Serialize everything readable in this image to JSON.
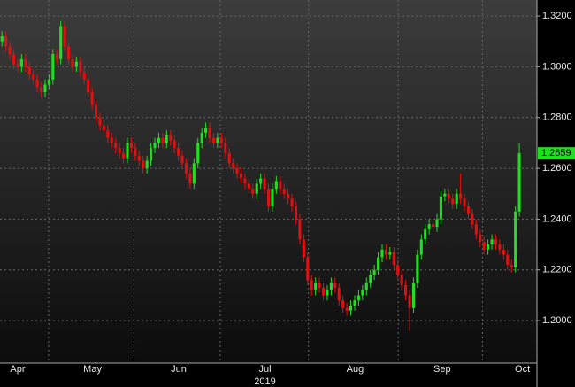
{
  "chart_data": {
    "type": "candlestick",
    "up_color": "#1ee01e",
    "down_color": "#e01010",
    "ylim": [
      1.1833,
      1.3263
    ],
    "yticks": [
      {
        "value": 1.2,
        "label": "1.2000"
      },
      {
        "value": 1.22,
        "label": "1.2200"
      },
      {
        "value": 1.24,
        "label": "1.2400"
      },
      {
        "value": 1.26,
        "label": "1.2600"
      },
      {
        "value": 1.28,
        "label": "1.2800"
      },
      {
        "value": 1.3,
        "label": "1.3000"
      },
      {
        "value": 1.32,
        "label": "1.3200"
      }
    ],
    "xlim": [
      0,
      137
    ],
    "xticks": [
      {
        "value": 4.5,
        "label": "Apr"
      },
      {
        "value": 23.6,
        "label": "May"
      },
      {
        "value": 45.6,
        "label": "Jun"
      },
      {
        "value": 67.6,
        "label": "Jul"
      },
      {
        "value": 90.6,
        "label": "Aug"
      },
      {
        "value": 112.8,
        "label": "Sep"
      },
      {
        "value": 133.3,
        "label": "Oct"
      }
    ],
    "xgrid": [
      12.4,
      34.2,
      56.2,
      78.7,
      101.6,
      123.1
    ],
    "x_sublabel": "2019",
    "grid": true,
    "last_price": {
      "value": 1.2659,
      "label": "1.2659"
    },
    "open": [
      1.31,
      1.312,
      1.308,
      1.305,
      1.301,
      1.3,
      1.303,
      1.3,
      1.297,
      1.295,
      1.292,
      1.29,
      1.293,
      1.295,
      1.305,
      1.303,
      1.316,
      1.308,
      1.303,
      1.3,
      1.302,
      1.298,
      1.295,
      1.29,
      1.285,
      1.28,
      1.277,
      1.275,
      1.272,
      1.27,
      1.268,
      1.266,
      1.264,
      1.27,
      1.268,
      1.265,
      1.263,
      1.26,
      1.263,
      1.268,
      1.27,
      1.272,
      1.27,
      1.273,
      1.271,
      1.268,
      1.265,
      1.262,
      1.258,
      1.254,
      1.262,
      1.27,
      1.274,
      1.276,
      1.272,
      1.27,
      1.272,
      1.27,
      1.266,
      1.262,
      1.26,
      1.258,
      1.256,
      1.254,
      1.252,
      1.25,
      1.254,
      1.256,
      1.252,
      1.245,
      1.252,
      1.255,
      1.252,
      1.25,
      1.248,
      1.245,
      1.24,
      1.232,
      1.225,
      1.216,
      1.212,
      1.215,
      1.213,
      1.21,
      1.212,
      1.215,
      1.213,
      1.208,
      1.205,
      1.204,
      1.206,
      1.208,
      1.21,
      1.212,
      1.215,
      1.218,
      1.22,
      1.225,
      1.228,
      1.226,
      1.227,
      1.222,
      1.218,
      1.214,
      1.21,
      1.205,
      1.215,
      1.226,
      1.232,
      1.236,
      1.238,
      1.237,
      1.24,
      1.249,
      1.25,
      1.248,
      1.246,
      1.25,
      1.248,
      1.245,
      1.242,
      1.238,
      1.234,
      1.231,
      1.228,
      1.23,
      1.232,
      1.23,
      1.228,
      1.226,
      1.222,
      1.221,
      1.243
    ],
    "high": [
      1.314,
      1.314,
      1.31,
      1.307,
      1.303,
      1.305,
      1.305,
      1.302,
      1.299,
      1.297,
      1.294,
      1.295,
      1.297,
      1.307,
      1.307,
      1.318,
      1.318,
      1.31,
      1.305,
      1.304,
      1.304,
      1.3,
      1.297,
      1.292,
      1.287,
      1.282,
      1.279,
      1.277,
      1.274,
      1.272,
      1.27,
      1.268,
      1.272,
      1.272,
      1.27,
      1.267,
      1.265,
      1.265,
      1.27,
      1.272,
      1.274,
      1.274,
      1.275,
      1.275,
      1.273,
      1.27,
      1.267,
      1.264,
      1.26,
      1.264,
      1.272,
      1.276,
      1.278,
      1.278,
      1.274,
      1.274,
      1.274,
      1.272,
      1.268,
      1.264,
      1.262,
      1.26,
      1.258,
      1.256,
      1.254,
      1.256,
      1.258,
      1.258,
      1.254,
      1.254,
      1.257,
      1.257,
      1.254,
      1.252,
      1.25,
      1.247,
      1.242,
      1.234,
      1.227,
      1.218,
      1.217,
      1.217,
      1.215,
      1.214,
      1.217,
      1.217,
      1.215,
      1.21,
      1.207,
      1.208,
      1.21,
      1.212,
      1.214,
      1.217,
      1.22,
      1.222,
      1.227,
      1.23,
      1.23,
      1.229,
      1.229,
      1.224,
      1.22,
      1.216,
      1.212,
      1.217,
      1.228,
      1.234,
      1.238,
      1.24,
      1.24,
      1.242,
      1.251,
      1.252,
      1.252,
      1.25,
      1.252,
      1.258,
      1.25,
      1.247,
      1.244,
      1.24,
      1.236,
      1.233,
      1.232,
      1.234,
      1.234,
      1.232,
      1.23,
      1.228,
      1.224,
      1.245,
      1.27
    ],
    "low": [
      1.308,
      1.306,
      1.303,
      1.299,
      1.298,
      1.298,
      1.298,
      1.295,
      1.293,
      1.29,
      1.288,
      1.288,
      1.291,
      1.293,
      1.301,
      1.301,
      1.306,
      1.301,
      1.298,
      1.298,
      1.296,
      1.293,
      1.288,
      1.283,
      1.278,
      1.275,
      1.273,
      1.27,
      1.268,
      1.266,
      1.264,
      1.262,
      1.262,
      1.266,
      1.263,
      1.261,
      1.258,
      1.258,
      1.261,
      1.266,
      1.268,
      1.268,
      1.268,
      1.269,
      1.266,
      1.263,
      1.26,
      1.256,
      1.252,
      1.252,
      1.26,
      1.268,
      1.272,
      1.27,
      1.268,
      1.268,
      1.268,
      1.264,
      1.26,
      1.258,
      1.256,
      1.254,
      1.252,
      1.25,
      1.248,
      1.248,
      1.252,
      1.25,
      1.243,
      1.243,
      1.25,
      1.25,
      1.248,
      1.246,
      1.243,
      1.238,
      1.23,
      1.223,
      1.214,
      1.21,
      1.21,
      1.211,
      1.208,
      1.208,
      1.21,
      1.211,
      1.206,
      1.203,
      1.202,
      1.202,
      1.204,
      1.206,
      1.208,
      1.21,
      1.213,
      1.216,
      1.218,
      1.223,
      1.224,
      1.224,
      1.22,
      1.216,
      1.212,
      1.208,
      1.196,
      1.203,
      1.213,
      1.224,
      1.23,
      1.234,
      1.235,
      1.235,
      1.238,
      1.247,
      1.246,
      1.244,
      1.244,
      1.246,
      1.243,
      1.24,
      1.236,
      1.232,
      1.229,
      1.226,
      1.226,
      1.228,
      1.228,
      1.226,
      1.224,
      1.22,
      1.219,
      1.219,
      1.241
    ],
    "close": [
      1.312,
      1.308,
      1.305,
      1.301,
      1.3,
      1.303,
      1.3,
      1.297,
      1.295,
      1.292,
      1.29,
      1.293,
      1.295,
      1.305,
      1.303,
      1.316,
      1.308,
      1.303,
      1.3,
      1.302,
      1.298,
      1.295,
      1.29,
      1.285,
      1.28,
      1.277,
      1.275,
      1.272,
      1.27,
      1.268,
      1.266,
      1.264,
      1.27,
      1.268,
      1.265,
      1.263,
      1.26,
      1.263,
      1.268,
      1.27,
      1.272,
      1.27,
      1.273,
      1.271,
      1.268,
      1.265,
      1.262,
      1.258,
      1.254,
      1.262,
      1.27,
      1.274,
      1.276,
      1.272,
      1.27,
      1.272,
      1.27,
      1.266,
      1.262,
      1.26,
      1.258,
      1.256,
      1.254,
      1.252,
      1.25,
      1.254,
      1.256,
      1.252,
      1.245,
      1.252,
      1.255,
      1.252,
      1.25,
      1.248,
      1.245,
      1.24,
      1.232,
      1.225,
      1.216,
      1.212,
      1.215,
      1.213,
      1.21,
      1.212,
      1.215,
      1.213,
      1.208,
      1.205,
      1.204,
      1.206,
      1.208,
      1.21,
      1.212,
      1.215,
      1.218,
      1.22,
      1.225,
      1.228,
      1.226,
      1.227,
      1.222,
      1.218,
      1.214,
      1.21,
      1.205,
      1.215,
      1.226,
      1.232,
      1.236,
      1.238,
      1.237,
      1.24,
      1.249,
      1.25,
      1.248,
      1.246,
      1.25,
      1.248,
      1.245,
      1.242,
      1.238,
      1.234,
      1.231,
      1.228,
      1.23,
      1.232,
      1.23,
      1.228,
      1.226,
      1.222,
      1.221,
      1.243,
      1.2659
    ]
  }
}
